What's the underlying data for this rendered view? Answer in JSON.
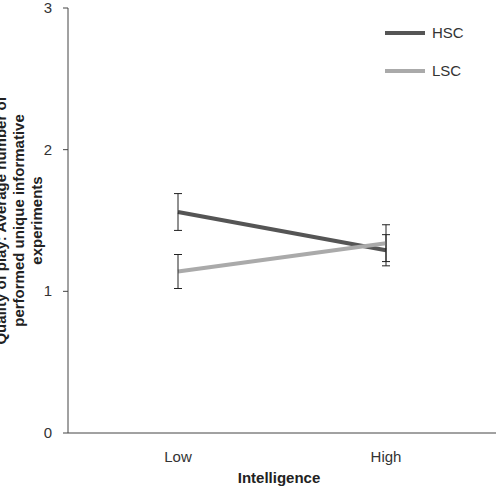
{
  "chart_data": {
    "type": "line",
    "ylabel": "Quality of play: Average number of performed unique informative experiments",
    "xlabel": "Intelligence",
    "categories": [
      "Low",
      "High"
    ],
    "series": [
      {
        "name": "HSC",
        "color": "#555555",
        "values": [
          1.56,
          1.29
        ],
        "errors": [
          0.13,
          0.11
        ]
      },
      {
        "name": "LSC",
        "color": "#aaaaaa",
        "values": [
          1.14,
          1.34
        ],
        "errors": [
          0.12,
          0.13
        ]
      }
    ],
    "ylim": [
      0,
      3
    ],
    "yticks": [
      0,
      1,
      2,
      3
    ],
    "grid": false,
    "legend": "top-right"
  }
}
